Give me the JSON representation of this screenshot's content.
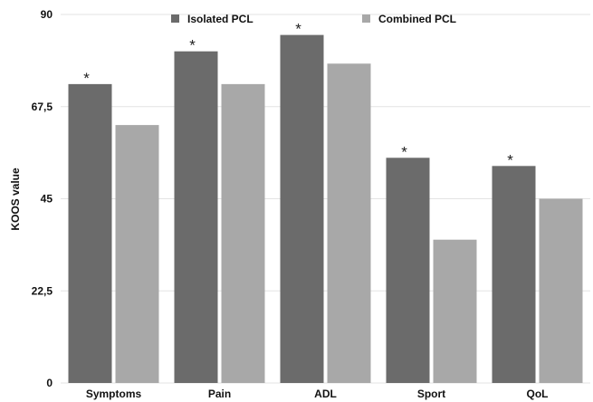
{
  "chart_data": {
    "type": "bar",
    "ylabel": "KOOS value",
    "xlabel": "",
    "ylim": [
      0,
      90
    ],
    "yticks": [
      0,
      22.5,
      45,
      67.5,
      90
    ],
    "ytick_labels": [
      "0",
      "22,5",
      "45",
      "67,5",
      "90"
    ],
    "grid": true,
    "legend_position": "top",
    "categories": [
      "Symptoms",
      "Pain",
      "ADL",
      "Sport",
      "QoL"
    ],
    "series": [
      {
        "name": "Isolated PCL",
        "color": "#6b6b6b",
        "values": [
          73,
          81,
          85,
          55,
          53
        ],
        "annotations": [
          "*",
          "*",
          "*",
          "*",
          "*"
        ]
      },
      {
        "name": "Combined PCL",
        "color": "#a8a8a8",
        "values": [
          63,
          73,
          78,
          35,
          45
        ],
        "annotations": [
          "",
          "",
          "",
          "",
          ""
        ]
      }
    ]
  }
}
